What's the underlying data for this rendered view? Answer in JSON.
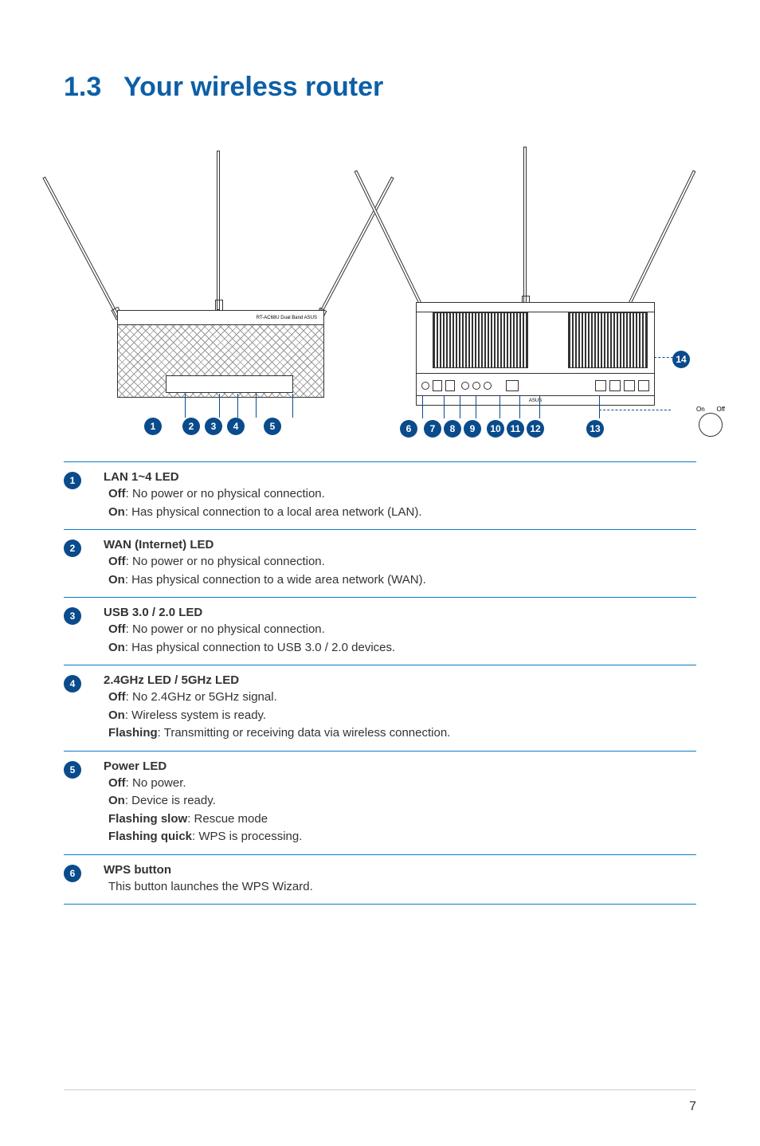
{
  "section": {
    "number": "1.3",
    "title": "Your wireless router"
  },
  "colors": {
    "accent": "#0d5fa6",
    "badge": "#0a4b8c",
    "rule": "#0a7bc4"
  },
  "front_logo": "RT-AC68U Dual Band  ASUS",
  "back_logo": "ASUS",
  "led_switch": {
    "on": "On",
    "off": "Off"
  },
  "callouts_front": [
    "1",
    "2",
    "3",
    "4",
    "5"
  ],
  "callouts_back": [
    "6",
    "7",
    "8",
    "9",
    "10",
    "11",
    "12",
    "13"
  ],
  "callout_14": "14",
  "items": [
    {
      "num": "1",
      "title": "LAN 1~4 LED",
      "lines": [
        {
          "b": "Off",
          "t": ": No power or no physical connection."
        },
        {
          "b": "On",
          "t": ": Has physical connection to a local area network (LAN)."
        }
      ]
    },
    {
      "num": "2",
      "title": "WAN (Internet) LED",
      "lines": [
        {
          "b": "Off",
          "t": ": No power or no physical connection."
        },
        {
          "b": "On",
          "t": ": Has physical connection to a wide area network (WAN)."
        }
      ]
    },
    {
      "num": "3",
      "title": "USB 3.0 / 2.0 LED",
      "lines": [
        {
          "b": "Off",
          "t": ": No power or no physical connection."
        },
        {
          "b": "On",
          "t": ": Has physical connection to USB 3.0 / 2.0 devices."
        }
      ]
    },
    {
      "num": "4",
      "title": "2.4GHz LED / 5GHz LED",
      "lines": [
        {
          "b": "Off",
          "t": ": No 2.4GHz or 5GHz signal."
        },
        {
          "b": "On",
          "t": ": Wireless system is ready."
        },
        {
          "b": "Flashing",
          "t": ": Transmitting or receiving data via wireless connection."
        }
      ]
    },
    {
      "num": "5",
      "title": "Power LED",
      "lines": [
        {
          "b": "Off",
          "t": ": No power."
        },
        {
          "b": "On",
          "t": ": Device is ready."
        },
        {
          "b": "Flashing slow",
          "t": ": Rescue mode"
        },
        {
          "b": "Flashing quick",
          "t": ": WPS is processing."
        }
      ]
    },
    {
      "num": "6",
      "title": "WPS button",
      "lines": [
        {
          "b": "",
          "t": "This button launches the WPS Wizard."
        }
      ]
    }
  ],
  "page_number": "7"
}
